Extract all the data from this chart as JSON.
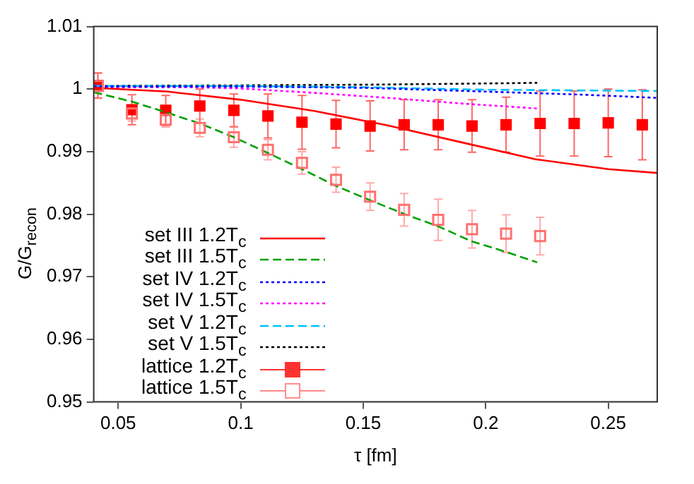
{
  "chart_data": {
    "type": "line",
    "xlabel": "τ [fm]",
    "ylabel": "G/G$_{recon}$",
    "xlim": [
      0.04,
      0.27
    ],
    "ylim": [
      0.95,
      1.01
    ],
    "xticks": [
      0.05,
      0.1,
      0.15,
      0.2,
      0.25
    ],
    "yticks": [
      0.95,
      0.96,
      0.97,
      0.98,
      0.99,
      1,
      1.01
    ],
    "grid": false,
    "legend": "bottom left",
    "series": [
      {
        "name": "set III 1.2T$_{c}$",
        "type": "line",
        "color": "#ff0000",
        "line_style": "solid",
        "marker": "none",
        "x": [
          0.04,
          0.07,
          0.1,
          0.13,
          0.16,
          0.19,
          0.22,
          0.25,
          0.27
        ],
        "values": [
          1.0002,
          0.9996,
          0.9983,
          0.9965,
          0.9942,
          0.9915,
          0.9888,
          0.9872,
          0.9866
        ]
      },
      {
        "name": "set III 1.5T$_{c}$",
        "type": "line",
        "color": "#00a000",
        "line_style": "dashed",
        "marker": "none",
        "x": [
          0.04,
          0.0556,
          0.0694,
          0.0833,
          0.0972,
          0.111,
          0.125,
          0.139,
          0.153,
          0.167,
          0.181,
          0.194,
          0.208,
          0.221
        ],
        "values": [
          0.9995,
          0.998,
          0.9963,
          0.9945,
          0.9923,
          0.9898,
          0.9872,
          0.9845,
          0.9822,
          0.98,
          0.978,
          0.9757,
          0.974,
          0.9723
        ]
      },
      {
        "name": "set IV 1.2T$_{c}$",
        "type": "line",
        "color": "#0000ff",
        "line_style": "dotted",
        "marker": "none",
        "x": [
          0.04,
          0.1,
          0.15,
          0.2,
          0.24,
          0.27
        ],
        "values": [
          1.0004,
          1.0004,
          1.0002,
          0.9996,
          0.9991,
          0.9986
        ]
      },
      {
        "name": "set IV 1.5T$_{c}$",
        "type": "line",
        "color": "#ff00ff",
        "line_style": "dotted",
        "marker": "none",
        "x": [
          0.04,
          0.08,
          0.1,
          0.13,
          0.16,
          0.19,
          0.221
        ],
        "values": [
          1.0003,
          1.0003,
          1.0001,
          0.9994,
          0.9986,
          0.9977,
          0.9969
        ]
      },
      {
        "name": "set V 1.2T$_{c}$",
        "type": "line",
        "color": "#00c0ff",
        "line_style": "dashed",
        "marker": "none",
        "x": [
          0.04,
          0.1,
          0.15,
          0.2,
          0.27
        ],
        "values": [
          1.0005,
          1.0005,
          1.0003,
          0.9999,
          0.9997
        ]
      },
      {
        "name": "set V 1.5T$_{c}$",
        "type": "line",
        "color": "#000000",
        "line_style": "dotted",
        "marker": "none",
        "x": [
          0.04,
          0.1,
          0.15,
          0.2,
          0.221
        ],
        "values": [
          1.0005,
          1.0006,
          1.0007,
          1.0009,
          1.001
        ]
      },
      {
        "name": "lattice 1.2T$_{c}$",
        "type": "scatter",
        "color": "#ff0000",
        "marker": "square",
        "x": [
          0.0417,
          0.0556,
          0.0694,
          0.0833,
          0.0972,
          0.1111,
          0.125,
          0.1389,
          0.1528,
          0.1667,
          0.1806,
          0.1944,
          0.2083,
          0.2222,
          0.2361,
          0.25,
          0.2639
        ],
        "values": [
          1.0006,
          0.9967,
          0.9966,
          0.9973,
          0.9966,
          0.9957,
          0.9947,
          0.9944,
          0.9941,
          0.9943,
          0.9943,
          0.9941,
          0.9943,
          0.9945,
          0.9945,
          0.9946,
          0.9943
        ],
        "errors": [
          0.002,
          0.0024,
          0.0024,
          0.0027,
          0.0026,
          0.0035,
          0.0043,
          0.0038,
          0.004,
          0.004,
          0.004,
          0.0042,
          0.0044,
          0.0052,
          0.0052,
          0.0054,
          0.0056
        ]
      },
      {
        "name": "lattice 1.5T$_{c}$",
        "type": "scatter",
        "color": "#ff7070",
        "marker": "square",
        "x": [
          0.0417,
          0.0556,
          0.0694,
          0.0833,
          0.0972,
          0.1111,
          0.125,
          0.1389,
          0.1528,
          0.1667,
          0.1806,
          0.1944,
          0.2083,
          0.2222
        ],
        "values": [
          1.0005,
          0.9961,
          0.9951,
          0.9938,
          0.9923,
          0.9903,
          0.9882,
          0.9855,
          0.9828,
          0.9807,
          0.9791,
          0.9776,
          0.9769,
          0.9765
        ],
        "errors": [
          0.002,
          0.0012,
          0.0012,
          0.0014,
          0.0016,
          0.0016,
          0.0018,
          0.002,
          0.0022,
          0.0026,
          0.0033,
          0.003,
          0.003,
          0.003
        ]
      }
    ]
  }
}
